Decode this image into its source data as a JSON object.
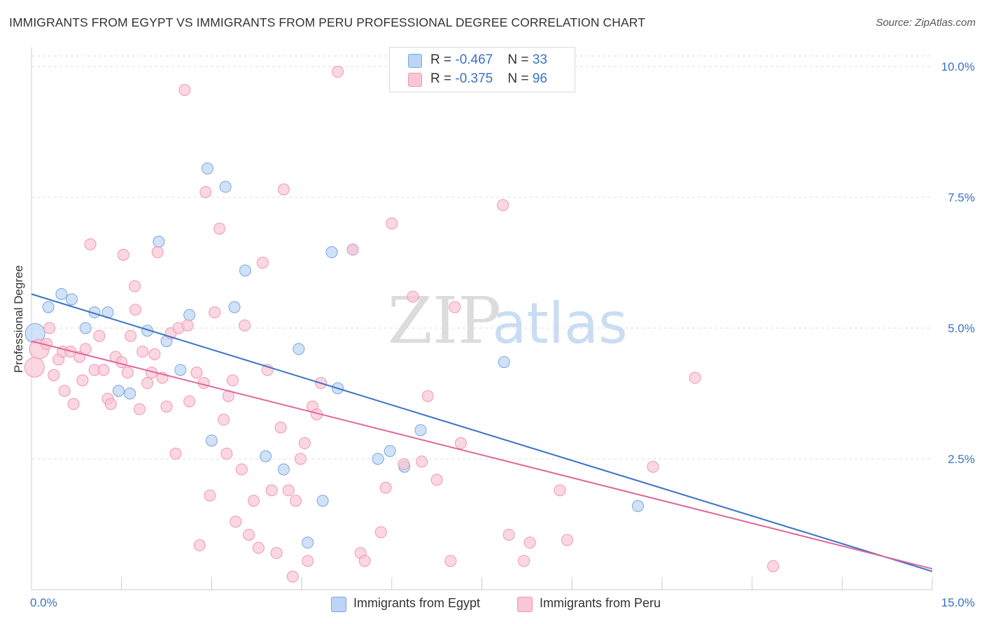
{
  "title": "IMMIGRANTS FROM EGYPT VS IMMIGRANTS FROM PERU PROFESSIONAL DEGREE CORRELATION CHART",
  "source": "Source: ZipAtlas.com",
  "watermark": {
    "zip": "ZIP",
    "atlas": "atlas"
  },
  "legend": [
    {
      "swatch_fill": "#bcd4f5",
      "swatch_stroke": "#7aa6e0",
      "r_label": "R = ",
      "r_value": "-0.467",
      "n_label": "N = ",
      "n_value": "33"
    },
    {
      "swatch_fill": "#f9c6d5",
      "swatch_stroke": "#ef97b2",
      "r_label": "R = ",
      "r_value": "-0.375",
      "n_label": "N = ",
      "n_value": "96"
    }
  ],
  "bottom_legend": [
    "Immigrants from Egypt",
    "Immigrants from Peru"
  ],
  "x_axis_labels": {
    "min": "0.0%",
    "max": "15.0%"
  },
  "chart_data": {
    "type": "scatter",
    "title": "IMMIGRANTS FROM EGYPT VS IMMIGRANTS FROM PERU PROFESSIONAL DEGREE CORRELATION CHART",
    "xlabel": "",
    "ylabel": "Professional Degree",
    "xlim": [
      0,
      15
    ],
    "ylim": [
      0,
      10.2
    ],
    "x_ticks": [
      0,
      1.5,
      3,
      4.5,
      6,
      7.5,
      9,
      10.5,
      12,
      13.5,
      15
    ],
    "y_ticks": [
      2.5,
      5.0,
      7.5,
      10.0
    ],
    "y_tick_labels": [
      "2.5%",
      "5.0%",
      "7.5%",
      "10.0%"
    ],
    "grid": "horizontal dashed",
    "series": [
      {
        "name": "Immigrants from Egypt",
        "color": "#3a72c4",
        "fill": "#bcd4f5",
        "stroke": "#7aa6e0",
        "R": -0.467,
        "N": 33,
        "trend": {
          "x": [
            0,
            15
          ],
          "y": [
            5.65,
            0.35
          ]
        },
        "points": [
          {
            "x": 0.06,
            "y": 4.9,
            "big": true
          },
          {
            "x": 0.28,
            "y": 5.4
          },
          {
            "x": 0.5,
            "y": 5.65
          },
          {
            "x": 0.67,
            "y": 5.55
          },
          {
            "x": 0.9,
            "y": 5.0
          },
          {
            "x": 1.05,
            "y": 5.3
          },
          {
            "x": 1.27,
            "y": 5.3
          },
          {
            "x": 1.45,
            "y": 3.8
          },
          {
            "x": 1.64,
            "y": 3.75
          },
          {
            "x": 1.93,
            "y": 4.95
          },
          {
            "x": 2.12,
            "y": 6.65
          },
          {
            "x": 2.25,
            "y": 4.75
          },
          {
            "x": 2.48,
            "y": 4.2
          },
          {
            "x": 2.63,
            "y": 5.25
          },
          {
            "x": 2.93,
            "y": 8.05
          },
          {
            "x": 3.0,
            "y": 2.85
          },
          {
            "x": 3.23,
            "y": 7.7
          },
          {
            "x": 3.38,
            "y": 5.4
          },
          {
            "x": 3.56,
            "y": 6.1
          },
          {
            "x": 3.9,
            "y": 2.55
          },
          {
            "x": 4.2,
            "y": 2.3
          },
          {
            "x": 4.45,
            "y": 4.6
          },
          {
            "x": 4.6,
            "y": 0.9
          },
          {
            "x": 4.85,
            "y": 1.7
          },
          {
            "x": 5.0,
            "y": 6.45
          },
          {
            "x": 5.1,
            "y": 3.85
          },
          {
            "x": 5.35,
            "y": 6.5
          },
          {
            "x": 5.77,
            "y": 2.5
          },
          {
            "x": 5.97,
            "y": 2.65
          },
          {
            "x": 6.21,
            "y": 2.35
          },
          {
            "x": 6.48,
            "y": 3.05
          },
          {
            "x": 7.87,
            "y": 4.35
          },
          {
            "x": 10.1,
            "y": 1.6
          }
        ]
      },
      {
        "name": "Immigrants from Peru",
        "color": "#e0679a",
        "fill": "#f9c6d5",
        "stroke": "#ef97b2",
        "R": -0.375,
        "N": 96,
        "trend": {
          "x": [
            0,
            15
          ],
          "y": [
            4.75,
            0.4
          ]
        },
        "points": [
          {
            "x": 0.05,
            "y": 4.25,
            "big": true
          },
          {
            "x": 0.13,
            "y": 4.6,
            "big": true
          },
          {
            "x": 0.25,
            "y": 4.7
          },
          {
            "x": 0.3,
            "y": 5.0
          },
          {
            "x": 0.37,
            "y": 4.1
          },
          {
            "x": 0.45,
            "y": 4.4
          },
          {
            "x": 0.52,
            "y": 4.55
          },
          {
            "x": 0.55,
            "y": 3.8
          },
          {
            "x": 0.65,
            "y": 4.55
          },
          {
            "x": 0.7,
            "y": 3.55
          },
          {
            "x": 0.8,
            "y": 4.45
          },
          {
            "x": 0.9,
            "y": 4.6
          },
          {
            "x": 0.98,
            "y": 6.6
          },
          {
            "x": 1.05,
            "y": 4.2
          },
          {
            "x": 1.13,
            "y": 4.85
          },
          {
            "x": 1.2,
            "y": 4.2
          },
          {
            "x": 1.27,
            "y": 3.65
          },
          {
            "x": 1.32,
            "y": 3.55
          },
          {
            "x": 1.4,
            "y": 4.45
          },
          {
            "x": 1.5,
            "y": 4.35
          },
          {
            "x": 1.53,
            "y": 6.4
          },
          {
            "x": 1.6,
            "y": 4.15
          },
          {
            "x": 1.65,
            "y": 4.85
          },
          {
            "x": 1.73,
            "y": 5.35
          },
          {
            "x": 1.8,
            "y": 3.45
          },
          {
            "x": 1.85,
            "y": 4.55
          },
          {
            "x": 1.93,
            "y": 3.95
          },
          {
            "x": 2.0,
            "y": 4.15
          },
          {
            "x": 2.05,
            "y": 4.5
          },
          {
            "x": 2.1,
            "y": 6.45
          },
          {
            "x": 2.18,
            "y": 4.05
          },
          {
            "x": 2.25,
            "y": 3.5
          },
          {
            "x": 2.32,
            "y": 4.9
          },
          {
            "x": 2.4,
            "y": 2.6
          },
          {
            "x": 2.45,
            "y": 5.0
          },
          {
            "x": 2.6,
            "y": 5.05
          },
          {
            "x": 2.63,
            "y": 3.6
          },
          {
            "x": 2.75,
            "y": 4.15
          },
          {
            "x": 2.8,
            "y": 0.85
          },
          {
            "x": 2.87,
            "y": 3.95
          },
          {
            "x": 2.9,
            "y": 7.6
          },
          {
            "x": 2.97,
            "y": 1.8
          },
          {
            "x": 3.05,
            "y": 5.3
          },
          {
            "x": 3.13,
            "y": 6.9
          },
          {
            "x": 3.2,
            "y": 3.25
          },
          {
            "x": 3.28,
            "y": 3.7
          },
          {
            "x": 3.35,
            "y": 4.0
          },
          {
            "x": 3.4,
            "y": 1.3
          },
          {
            "x": 3.5,
            "y": 2.3
          },
          {
            "x": 3.55,
            "y": 5.05
          },
          {
            "x": 3.62,
            "y": 1.05
          },
          {
            "x": 3.7,
            "y": 1.7
          },
          {
            "x": 3.78,
            "y": 0.8
          },
          {
            "x": 3.85,
            "y": 6.25
          },
          {
            "x": 3.93,
            "y": 4.2
          },
          {
            "x": 4.0,
            "y": 1.9
          },
          {
            "x": 4.08,
            "y": 0.7
          },
          {
            "x": 4.15,
            "y": 3.1
          },
          {
            "x": 4.2,
            "y": 7.65
          },
          {
            "x": 4.28,
            "y": 1.9
          },
          {
            "x": 4.35,
            "y": 0.25
          },
          {
            "x": 4.4,
            "y": 1.7
          },
          {
            "x": 4.48,
            "y": 2.5
          },
          {
            "x": 4.55,
            "y": 2.8
          },
          {
            "x": 4.6,
            "y": 0.55
          },
          {
            "x": 4.68,
            "y": 3.5
          },
          {
            "x": 4.75,
            "y": 3.35
          },
          {
            "x": 4.82,
            "y": 3.95
          },
          {
            "x": 5.1,
            "y": 9.9
          },
          {
            "x": 5.35,
            "y": 6.5
          },
          {
            "x": 5.48,
            "y": 0.7
          },
          {
            "x": 5.55,
            "y": 0.55
          },
          {
            "x": 5.82,
            "y": 1.1
          },
          {
            "x": 5.9,
            "y": 1.95
          },
          {
            "x": 6.0,
            "y": 7.0
          },
          {
            "x": 6.2,
            "y": 2.4
          },
          {
            "x": 6.35,
            "y": 5.6
          },
          {
            "x": 6.5,
            "y": 2.45
          },
          {
            "x": 6.6,
            "y": 3.7
          },
          {
            "x": 6.75,
            "y": 2.1
          },
          {
            "x": 6.98,
            "y": 0.55
          },
          {
            "x": 7.05,
            "y": 5.4
          },
          {
            "x": 7.15,
            "y": 2.8
          },
          {
            "x": 7.85,
            "y": 7.35
          },
          {
            "x": 7.95,
            "y": 1.05
          },
          {
            "x": 8.2,
            "y": 0.55
          },
          {
            "x": 8.3,
            "y": 0.9
          },
          {
            "x": 8.8,
            "y": 1.9
          },
          {
            "x": 8.92,
            "y": 0.95
          },
          {
            "x": 10.35,
            "y": 2.35
          },
          {
            "x": 11.05,
            "y": 4.05
          },
          {
            "x": 12.35,
            "y": 0.45
          },
          {
            "x": 2.55,
            "y": 9.55
          },
          {
            "x": 1.72,
            "y": 5.8
          },
          {
            "x": 0.85,
            "y": 4.0
          },
          {
            "x": 3.25,
            "y": 2.6
          }
        ]
      }
    ]
  }
}
